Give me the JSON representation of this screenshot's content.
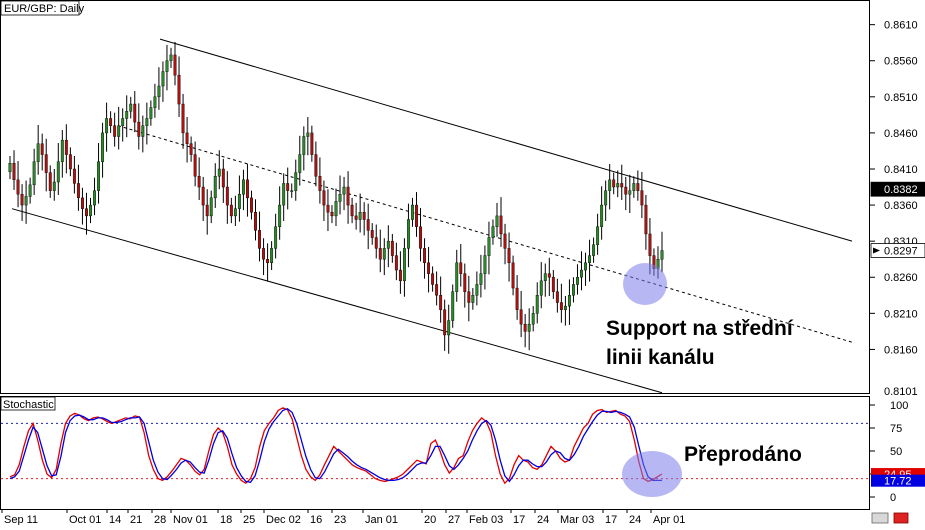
{
  "chart_data": [
    {
      "type": "candlestick",
      "title": "EUR/GBP: Daily",
      "ylim": [
        0.8101,
        0.864
      ],
      "yticks": [
        0.861,
        0.856,
        0.851,
        0.846,
        0.841,
        0.836,
        0.831,
        0.826,
        0.821,
        0.816
      ],
      "ytick_labels": [
        "0.8610",
        "0.8560",
        "0.8510",
        "0.8460",
        "0.8410",
        "0.8360",
        "0.8310",
        "0.8260",
        "0.8210",
        "0.8160"
      ],
      "bottom_label": "0.8101",
      "markers": [
        {
          "label": "0.8382",
          "value": 0.8382,
          "color": "#000000",
          "text_color": "#ffffff"
        },
        {
          "label": "0.8297",
          "value": 0.8297,
          "color": "#ffffff",
          "text_color": "#000000"
        }
      ],
      "closes": [
        0.8418,
        0.8395,
        0.8375,
        0.836,
        0.8372,
        0.8388,
        0.842,
        0.8445,
        0.843,
        0.8405,
        0.838,
        0.8392,
        0.842,
        0.845,
        0.843,
        0.841,
        0.839,
        0.837,
        0.8355,
        0.8345,
        0.836,
        0.838,
        0.842,
        0.846,
        0.848,
        0.847,
        0.8455,
        0.847,
        0.848,
        0.849,
        0.85,
        0.8475,
        0.8455,
        0.847,
        0.848,
        0.8495,
        0.851,
        0.8525,
        0.8545,
        0.856,
        0.8568,
        0.854,
        0.85,
        0.846,
        0.8445,
        0.843,
        0.84,
        0.8385,
        0.836,
        0.8345,
        0.837,
        0.84,
        0.841,
        0.8385,
        0.836,
        0.8345,
        0.8355,
        0.8375,
        0.8395,
        0.837,
        0.835,
        0.8325,
        0.83,
        0.8285,
        0.828,
        0.83,
        0.833,
        0.836,
        0.839,
        0.838,
        0.838,
        0.8405,
        0.843,
        0.8455,
        0.846,
        0.843,
        0.84,
        0.838,
        0.836,
        0.835,
        0.8345,
        0.8365,
        0.8375,
        0.8385,
        0.836,
        0.8345,
        0.834,
        0.835,
        0.834,
        0.8325,
        0.8315,
        0.83,
        0.8285,
        0.83,
        0.831,
        0.829,
        0.827,
        0.8255,
        0.83,
        0.834,
        0.836,
        0.833,
        0.83,
        0.828,
        0.8265,
        0.825,
        0.8235,
        0.8215,
        0.818,
        0.82,
        0.824,
        0.828,
        0.8265,
        0.824,
        0.8225,
        0.8235,
        0.825,
        0.8265,
        0.829,
        0.8315,
        0.833,
        0.8345,
        0.832,
        0.83,
        0.828,
        0.8245,
        0.8215,
        0.8195,
        0.8185,
        0.8195,
        0.821,
        0.8235,
        0.8255,
        0.8265,
        0.826,
        0.824,
        0.8225,
        0.8215,
        0.822,
        0.8235,
        0.825,
        0.826,
        0.827,
        0.828,
        0.829,
        0.8305,
        0.833,
        0.836,
        0.838,
        0.8395,
        0.8385,
        0.839,
        0.8385,
        0.8375,
        0.838,
        0.839,
        0.838,
        0.836,
        0.832,
        0.829,
        0.8272,
        0.8285,
        0.8297
      ],
      "overlay": {
        "channel_upper": [
          [
            0.859,
            0.831
          ]
        ],
        "channel_lower": [
          [
            0.8355,
            0.81
          ]
        ],
        "channel_mid": [
          [
            0.847,
            0.817
          ]
        ],
        "annotation_text": [
          "Support na střední",
          "linii kanálu"
        ],
        "highlight_color": "#7b7bea"
      },
      "x_tick_labels": [
        "Sep 11",
        "Oct 01",
        "14",
        "21",
        "28",
        "Nov 01",
        "18",
        "25",
        "Dec 02",
        "16",
        "23",
        "Jan 01",
        "20",
        "27",
        "Feb 03",
        "17",
        "24",
        "Mar 03",
        "17",
        "24",
        "Apr 01"
      ]
    },
    {
      "type": "line",
      "title": "Stochastic",
      "ylim": [
        0,
        100
      ],
      "yticks": [
        100,
        75,
        50,
        25,
        0
      ],
      "ytick_labels": [
        "100",
        "75",
        "50",
        "25",
        "0"
      ],
      "overbought": 80,
      "oversold": 20,
      "markers": [
        {
          "label": "24.95",
          "value": 24.95,
          "color": "#e00000",
          "text_color": "#ffffff"
        },
        {
          "label": "17.72",
          "value": 17.72,
          "color": "#0000e0",
          "text_color": "#ffffff"
        }
      ],
      "series": [
        {
          "color": "#e00000",
          "values": [
            22,
            24,
            35,
            55,
            72,
            80,
            62,
            40,
            25,
            21,
            30,
            58,
            80,
            88,
            91,
            89,
            85,
            83,
            86,
            87,
            85,
            82,
            80,
            82,
            84,
            86,
            85,
            88,
            87,
            70,
            45,
            30,
            20,
            18,
            22,
            28,
            35,
            42,
            40,
            35,
            28,
            24,
            30,
            50,
            68,
            75,
            70,
            55,
            35,
            25,
            18,
            15,
            20,
            32,
            55,
            72,
            80,
            86,
            94,
            97,
            95,
            85,
            65,
            45,
            30,
            22,
            18,
            24,
            35,
            45,
            55,
            50,
            45,
            40,
            35,
            32,
            30,
            28,
            24,
            20,
            18,
            17,
            18,
            20,
            22,
            25,
            30,
            35,
            40,
            38,
            36,
            58,
            62,
            50,
            35,
            26,
            32,
            42,
            45,
            60,
            72,
            80,
            86,
            82,
            70,
            45,
            25,
            15,
            20,
            35,
            45,
            40,
            38,
            32,
            30,
            35,
            45,
            55,
            50,
            42,
            38,
            40,
            55,
            65,
            75,
            80,
            90,
            94,
            95,
            92,
            93,
            94,
            90,
            88,
            82,
            62,
            38,
            20,
            17,
            19,
            22,
            25
          ]
        },
        {
          "color": "#0000e0",
          "values": [
            20,
            22,
            28,
            45,
            62,
            76,
            70,
            52,
            34,
            23,
            24,
            44,
            70,
            83,
            88,
            89,
            87,
            84,
            84,
            86,
            86,
            84,
            81,
            81,
            82,
            84,
            86,
            86,
            87,
            80,
            60,
            40,
            27,
            20,
            19,
            24,
            30,
            37,
            40,
            38,
            32,
            27,
            26,
            40,
            58,
            70,
            72,
            64,
            47,
            32,
            23,
            17,
            16,
            23,
            40,
            60,
            74,
            82,
            88,
            94,
            96,
            92,
            80,
            62,
            44,
            30,
            21,
            20,
            27,
            37,
            47,
            52,
            48,
            44,
            39,
            35,
            32,
            30,
            27,
            24,
            21,
            19,
            18,
            18,
            19,
            21,
            25,
            30,
            35,
            37,
            37,
            45,
            55,
            55,
            45,
            34,
            30,
            35,
            42,
            50,
            62,
            72,
            80,
            83,
            78,
            62,
            40,
            23,
            17,
            24,
            34,
            40,
            40,
            36,
            33,
            33,
            38,
            46,
            50,
            48,
            42,
            40,
            46,
            55,
            66,
            74,
            82,
            89,
            93,
            93,
            92,
            93,
            92,
            90,
            87,
            76,
            55,
            35,
            22,
            18,
            18,
            18
          ]
        }
      ],
      "x_tick_labels": [
        "Sep 11",
        "Oct 01",
        "14",
        "21",
        "28",
        "Nov 01",
        "18",
        "25",
        "Dec 02",
        "16",
        "23",
        "Jan 01",
        "20",
        "27",
        "Feb 03",
        "17",
        "24",
        "Mar 03",
        "17",
        "24",
        "Apr 01"
      ],
      "annotation_text": "Přeprodáno"
    }
  ]
}
